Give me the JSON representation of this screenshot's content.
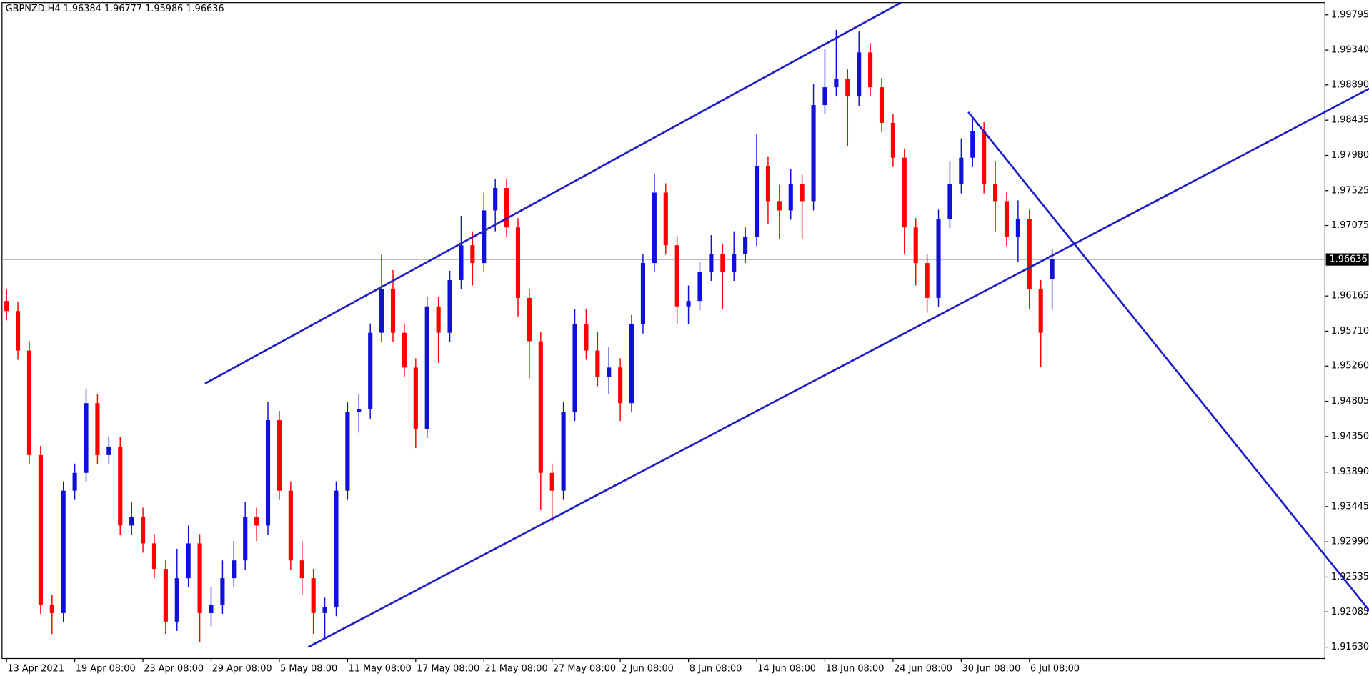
{
  "chart_data": {
    "type": "candlestick",
    "title": "GBPNZD,H4  1.96384 1.96777 1.95986 1.96636",
    "up_color": "#1010d8",
    "down_color": "#ff0000",
    "trendline_color": "#1f1fc4",
    "xlim": [
      -0.4,
      116
    ],
    "ylim": [
      1.91483,
      1.99953
    ],
    "yticks": [
      1.99795,
      {
        "value": 1.9934,
        "label": "1.99340"
      },
      {
        "value": 1.9889,
        "label": "1.98890"
      },
      1.98435,
      {
        "value": 1.9798,
        "label": "1.97980"
      },
      1.97525,
      1.97075,
      1.96165,
      {
        "value": 1.9571,
        "label": "1.95710"
      },
      {
        "value": 1.9526,
        "label": "1.95260"
      },
      1.94805,
      {
        "value": 1.9435,
        "label": "1.94350"
      },
      {
        "value": 1.9389,
        "label": "1.93890"
      },
      1.93445,
      {
        "value": 1.9299,
        "label": "1.92990"
      },
      1.92535,
      1.92085,
      {
        "value": 1.9163,
        "label": "1.91630"
      }
    ],
    "xticks": [
      {
        "value": 0,
        "label": "13 Apr 2021"
      },
      {
        "value": 6,
        "label": "19 Apr 08:00"
      },
      {
        "value": 12,
        "label": "23 Apr 08:00"
      },
      {
        "value": 18,
        "label": "29 Apr 08:00"
      },
      {
        "value": 24,
        "label": "5 May 08:00"
      },
      {
        "value": 30,
        "label": "11 May 08:00"
      },
      {
        "value": 36,
        "label": "17 May 08:00"
      },
      {
        "value": 42,
        "label": "21 May 08:00"
      },
      {
        "value": 48,
        "label": "27 May 08:00"
      },
      {
        "value": 54,
        "label": "2 Jun 08:00"
      },
      {
        "value": 60,
        "label": "8 Jun 08:00"
      },
      {
        "value": 66,
        "label": "14 Jun 08:00"
      },
      {
        "value": 72,
        "label": "18 Jun 08:00"
      },
      {
        "value": 78,
        "label": "24 Jun 08:00"
      },
      {
        "value": 84,
        "label": "30 Jun 08:00"
      },
      {
        "value": 90,
        "label": "6 Jul 08:00"
      }
    ],
    "current_price": 1.96636,
    "ohlc": [
      [
        1.961,
        1.9625,
        1.9585,
        1.9597
      ],
      [
        1.9597,
        1.9609,
        1.9534,
        1.9546
      ],
      [
        1.9546,
        1.9558,
        1.9399,
        1.9411
      ],
      [
        1.9411,
        1.9423,
        1.9206,
        1.9218
      ],
      [
        1.9218,
        1.923,
        1.918,
        1.9207
      ],
      [
        1.9207,
        1.9377,
        1.9195,
        1.9365
      ],
      [
        1.9365,
        1.94,
        1.9353,
        1.9388
      ],
      [
        1.9388,
        1.9497,
        1.9376,
        1.9478
      ],
      [
        1.9478,
        1.949,
        1.9399,
        1.9411
      ],
      [
        1.9411,
        1.9434,
        1.9399,
        1.9422
      ],
      [
        1.9422,
        1.9434,
        1.9308,
        1.932
      ],
      [
        1.932,
        1.935,
        1.9308,
        1.9331
      ],
      [
        1.9331,
        1.9343,
        1.9285,
        1.9297
      ],
      [
        1.9297,
        1.9309,
        1.9252,
        1.9264
      ],
      [
        1.9264,
        1.9276,
        1.918,
        1.9196
      ],
      [
        1.9196,
        1.929,
        1.9184,
        1.9252
      ],
      [
        1.9252,
        1.932,
        1.924,
        1.9297
      ],
      [
        1.9297,
        1.9309,
        1.917,
        1.9207
      ],
      [
        1.9207,
        1.924,
        1.919,
        1.9218
      ],
      [
        1.9218,
        1.9275,
        1.9206,
        1.9252
      ],
      [
        1.9252,
        1.93,
        1.924,
        1.9275
      ],
      [
        1.9275,
        1.935,
        1.9263,
        1.9331
      ],
      [
        1.9331,
        1.9343,
        1.93,
        1.932
      ],
      [
        1.932,
        1.948,
        1.9308,
        1.9456
      ],
      [
        1.9456,
        1.9468,
        1.9353,
        1.9365
      ],
      [
        1.9365,
        1.9377,
        1.9263,
        1.9275
      ],
      [
        1.9275,
        1.93,
        1.923,
        1.9252
      ],
      [
        1.9252,
        1.9264,
        1.918,
        1.9207
      ],
      [
        1.9207,
        1.9227,
        1.9175,
        1.9215
      ],
      [
        1.9215,
        1.9377,
        1.9203,
        1.9365
      ],
      [
        1.9365,
        1.9479,
        1.9353,
        1.9467
      ],
      [
        1.9467,
        1.949,
        1.944,
        1.947
      ],
      [
        1.947,
        1.9581,
        1.9458,
        1.9569
      ],
      [
        1.9569,
        1.967,
        1.9557,
        1.9625
      ],
      [
        1.9625,
        1.965,
        1.9557,
        1.9569
      ],
      [
        1.9569,
        1.9581,
        1.9512,
        1.9524
      ],
      [
        1.9524,
        1.9536,
        1.942,
        1.9445
      ],
      [
        1.9445,
        1.9615,
        1.9433,
        1.9603
      ],
      [
        1.9603,
        1.9615,
        1.953,
        1.9569
      ],
      [
        1.9569,
        1.9649,
        1.9557,
        1.9637
      ],
      [
        1.9637,
        1.972,
        1.9625,
        1.9682
      ],
      [
        1.9682,
        1.97,
        1.963,
        1.9659
      ],
      [
        1.9659,
        1.975,
        1.9647,
        1.9727
      ],
      [
        1.9727,
        1.9768,
        1.97,
        1.9756
      ],
      [
        1.9756,
        1.9768,
        1.9693,
        1.9705
      ],
      [
        1.9705,
        1.9717,
        1.959,
        1.9614
      ],
      [
        1.9614,
        1.9626,
        1.951,
        1.9558
      ],
      [
        1.9558,
        1.957,
        1.934,
        1.9388
      ],
      [
        1.9388,
        1.94,
        1.9325,
        1.9365
      ],
      [
        1.9365,
        1.9479,
        1.9353,
        1.9467
      ],
      [
        1.9467,
        1.96,
        1.9455,
        1.958
      ],
      [
        1.958,
        1.96,
        1.9534,
        1.9546
      ],
      [
        1.9546,
        1.957,
        1.95,
        1.9512
      ],
      [
        1.9512,
        1.955,
        1.949,
        1.9524
      ],
      [
        1.9524,
        1.9536,
        1.9455,
        1.9478
      ],
      [
        1.9478,
        1.9592,
        1.9466,
        1.958
      ],
      [
        1.958,
        1.9671,
        1.9568,
        1.9659
      ],
      [
        1.9659,
        1.9775,
        1.9647,
        1.975
      ],
      [
        1.975,
        1.9762,
        1.967,
        1.9682
      ],
      [
        1.9682,
        1.9694,
        1.958,
        1.9603
      ],
      [
        1.9603,
        1.963,
        1.958,
        1.961
      ],
      [
        1.961,
        1.966,
        1.9598,
        1.9648
      ],
      [
        1.9648,
        1.9695,
        1.9636,
        1.9671
      ],
      [
        1.9671,
        1.9683,
        1.96,
        1.9648
      ],
      [
        1.9648,
        1.97,
        1.9636,
        1.9671
      ],
      [
        1.9671,
        1.9705,
        1.9659,
        1.9693
      ],
      [
        1.9693,
        1.9825,
        1.9681,
        1.9784
      ],
      [
        1.9784,
        1.9796,
        1.971,
        1.9739
      ],
      [
        1.9739,
        1.976,
        1.969,
        1.9727
      ],
      [
        1.9727,
        1.978,
        1.9715,
        1.9761
      ],
      [
        1.9761,
        1.9773,
        1.969,
        1.9739
      ],
      [
        1.9739,
        1.989,
        1.9727,
        1.9863
      ],
      [
        1.9863,
        1.9935,
        1.9851,
        1.9886
      ],
      [
        1.9886,
        1.996,
        1.9874,
        1.9897
      ],
      [
        1.9897,
        1.9909,
        1.981,
        1.9874
      ],
      [
        1.9874,
        1.9958,
        1.9862,
        1.9931
      ],
      [
        1.9931,
        1.9943,
        1.9874,
        1.9886
      ],
      [
        1.9886,
        1.9898,
        1.9828,
        1.984
      ],
      [
        1.984,
        1.9852,
        1.9783,
        1.9795
      ],
      [
        1.9795,
        1.9807,
        1.967,
        1.9705
      ],
      [
        1.9705,
        1.9717,
        1.963,
        1.9659
      ],
      [
        1.9659,
        1.9671,
        1.9595,
        1.9614
      ],
      [
        1.9614,
        1.9728,
        1.9602,
        1.9716
      ],
      [
        1.9716,
        1.979,
        1.9704,
        1.9761
      ],
      [
        1.9761,
        1.982,
        1.9749,
        1.9795
      ],
      [
        1.9795,
        1.9845,
        1.9783,
        1.9829
      ],
      [
        1.9829,
        1.9841,
        1.9749,
        1.9761
      ],
      [
        1.9761,
        1.979,
        1.97,
        1.9739
      ],
      [
        1.9739,
        1.9751,
        1.9681,
        1.9693
      ],
      [
        1.9693,
        1.974,
        1.966,
        1.9716
      ],
      [
        1.9716,
        1.9728,
        1.96,
        1.9625
      ],
      [
        1.9625,
        1.9637,
        1.9525,
        1.9569
      ],
      [
        1.96384,
        1.96777,
        1.95986,
        1.96636
      ]
    ],
    "trendlines": [
      {
        "x": [
          17.46,
          78.69
        ],
        "y": [
          1.95033,
          1.99953
        ]
      },
      {
        "x": [
          26.54,
          120.08
        ],
        "y": [
          1.9163,
          1.98856
        ]
      },
      {
        "x": [
          84.62,
          120.08
        ],
        "y": [
          1.9854,
          1.9207
        ]
      }
    ]
  }
}
